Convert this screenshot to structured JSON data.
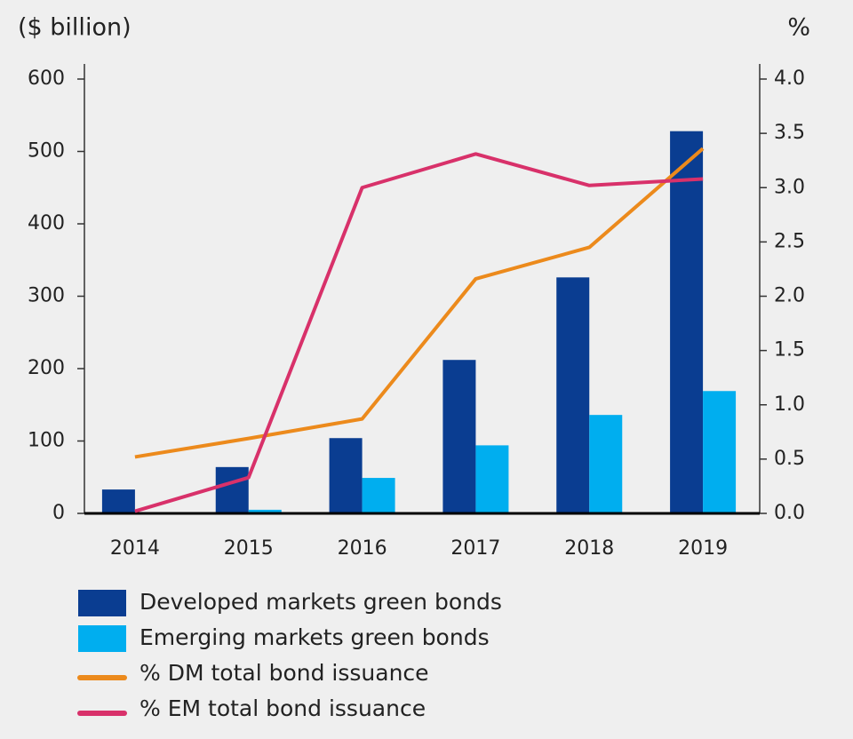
{
  "chart_data": {
    "type": "bar",
    "y_label": "($ billion)",
    "y2_label": "%",
    "categories": [
      "2014",
      "2015",
      "2016",
      "2017",
      "2018",
      "2019"
    ],
    "series": [
      {
        "name": "Developed markets green bonds",
        "color": "#0a3d91",
        "values": [
          33,
          64,
          104,
          212,
          326,
          528
        ]
      },
      {
        "name": "Emerging markets green bonds",
        "color": "#00aeef",
        "values": [
          0,
          5,
          49,
          94,
          136,
          169
        ]
      },
      {
        "name": "% DM total bond issuance",
        "color": "#ec8a1c",
        "type": "line",
        "axis": "y2",
        "values": [
          0.52,
          0.69,
          0.87,
          2.16,
          2.45,
          3.36
        ]
      },
      {
        "name": "% EM total bond issuance",
        "color": "#d8316a",
        "type": "line",
        "axis": "y2",
        "values": [
          0.02,
          0.33,
          3.0,
          3.31,
          3.02,
          3.08
        ]
      }
    ],
    "ylim": [
      0,
      600
    ],
    "yticks": [
      0,
      100,
      200,
      300,
      400,
      500,
      600
    ],
    "y2lim": [
      0,
      4
    ],
    "y2ticks": [
      {
        "value": 0,
        "label": "0.0"
      },
      {
        "value": 0.5,
        "label": "0.5"
      },
      {
        "value": 1,
        "label": "1.0"
      },
      {
        "value": 1.5,
        "label": "1.5"
      },
      {
        "value": 2,
        "label": "2.0"
      },
      {
        "value": 2.5,
        "label": "2.5"
      },
      {
        "value": 3,
        "label": "3.0"
      },
      {
        "value": 3.5,
        "label": "3.5"
      },
      {
        "value": 4,
        "label": "4.0"
      }
    ],
    "legend": "bottom-left"
  }
}
